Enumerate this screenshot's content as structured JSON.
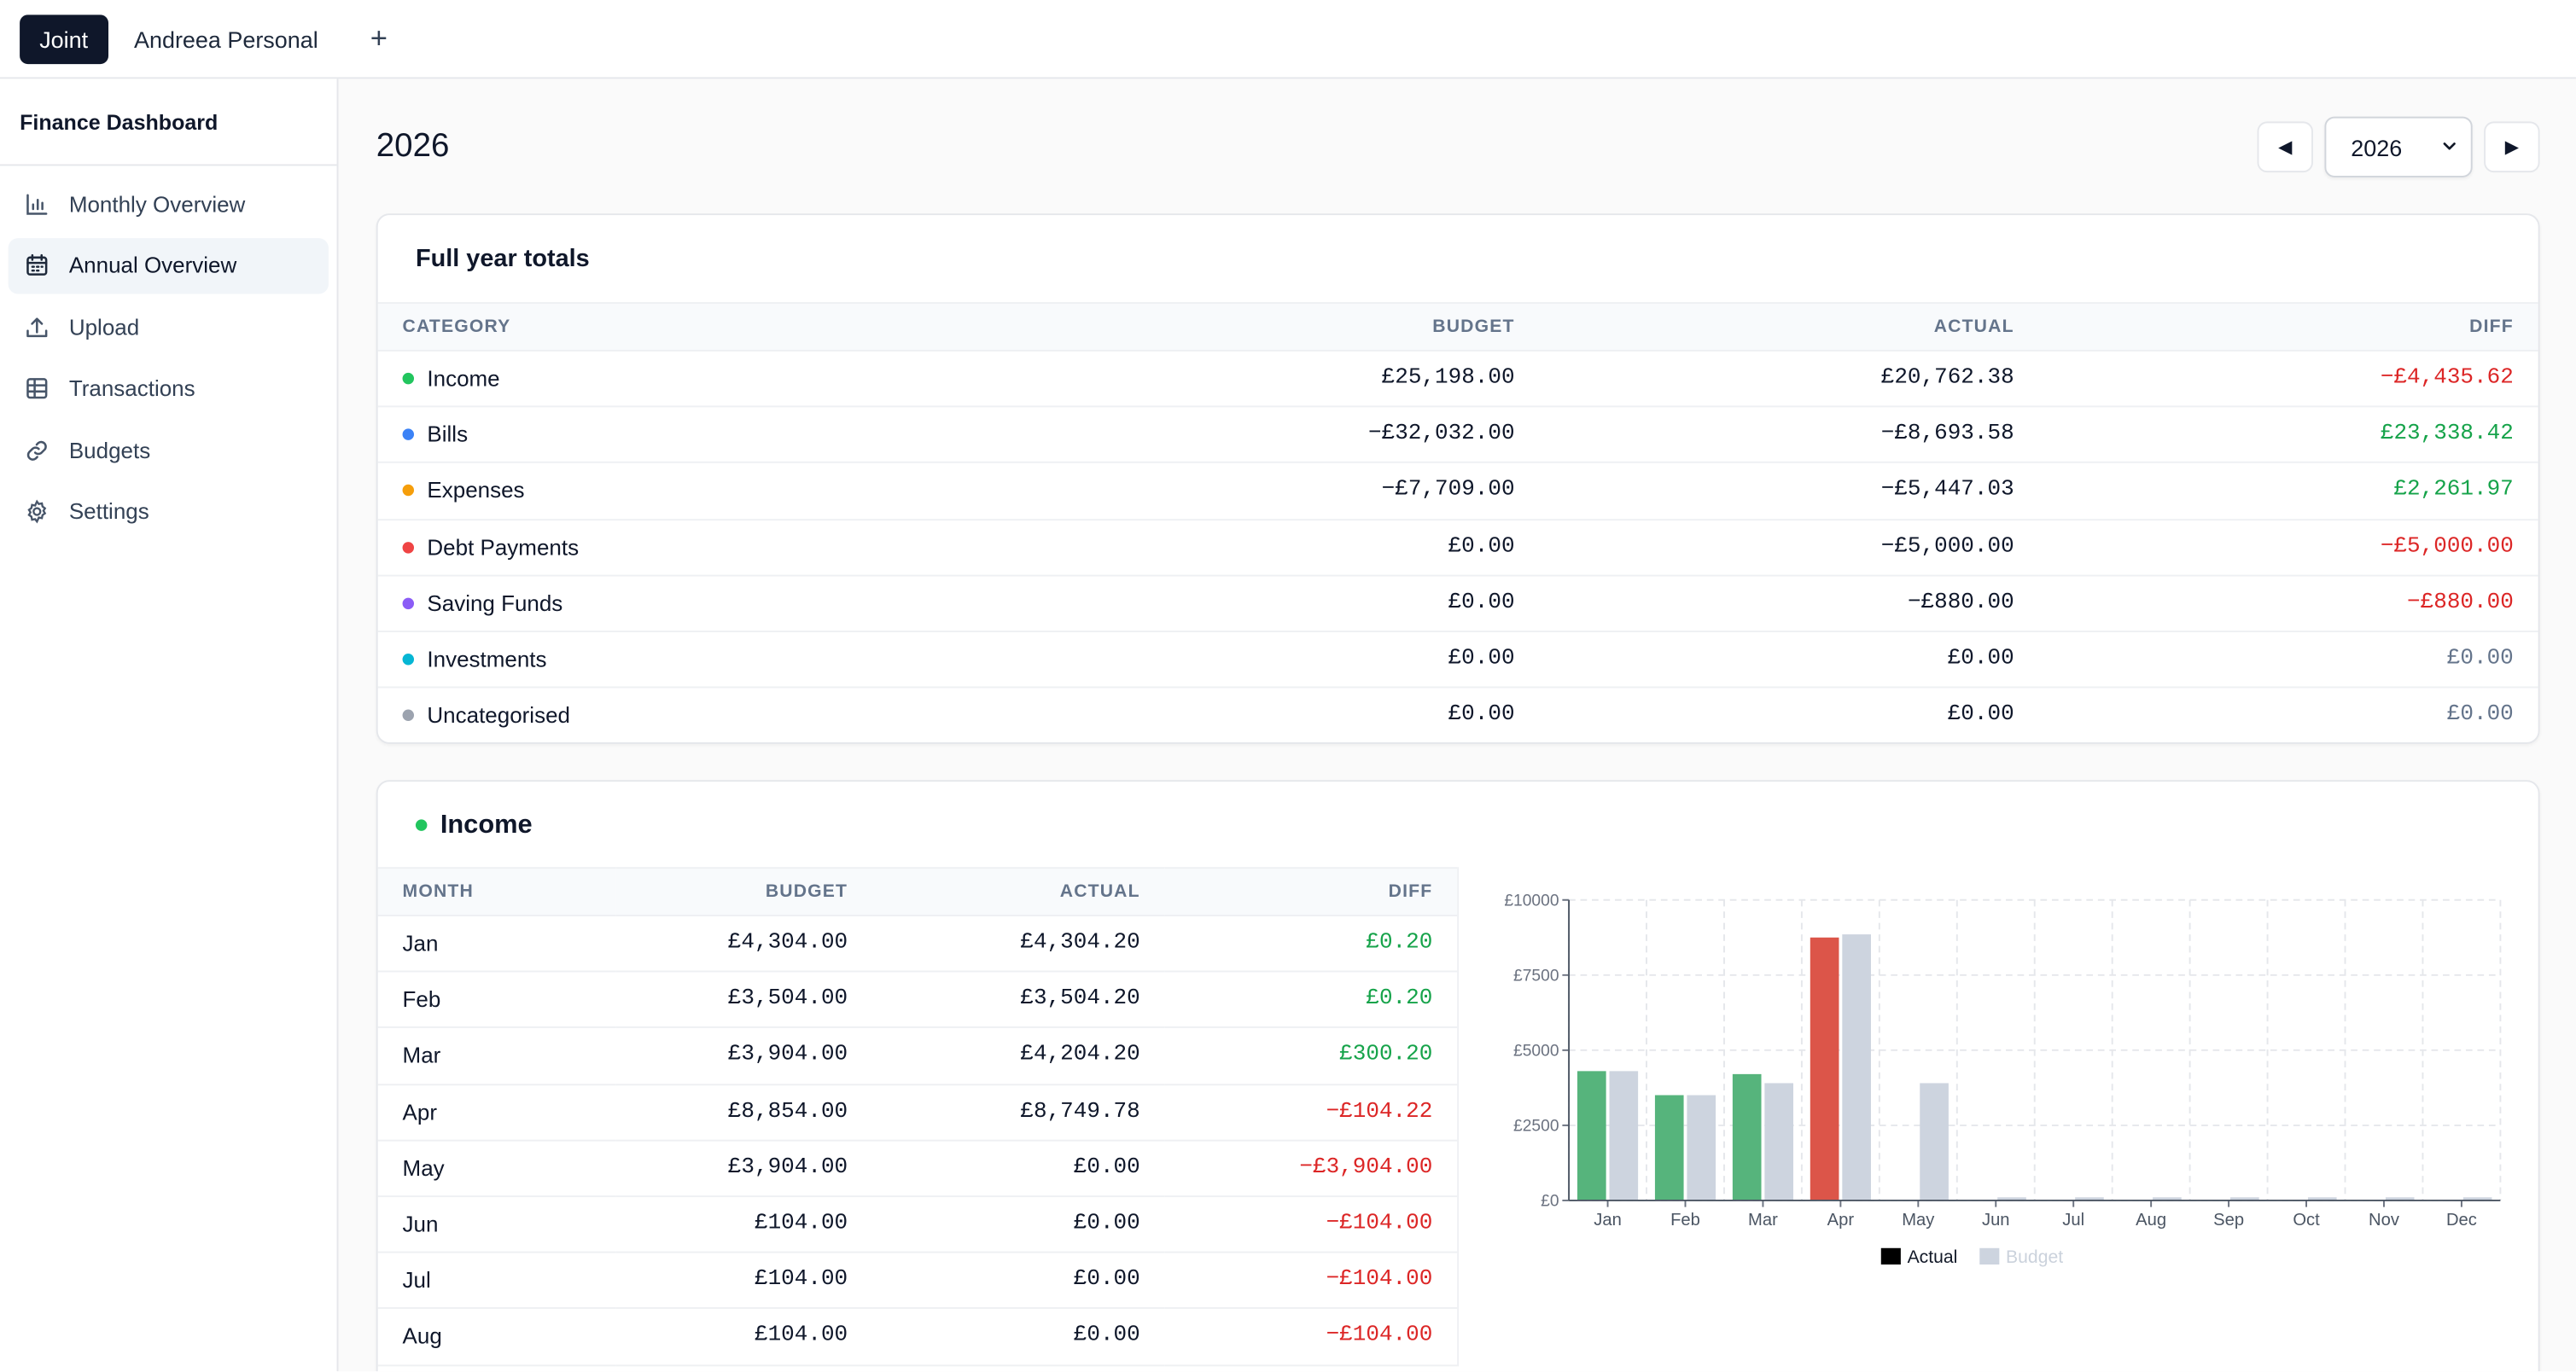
{
  "tabs": [
    {
      "label": "Joint",
      "active": true
    },
    {
      "label": "Andreea Personal",
      "active": false
    }
  ],
  "add_tab_label": "+",
  "sidebar": {
    "title": "Finance Dashboard",
    "items": [
      {
        "label": "Monthly Overview",
        "icon": "bar-chart-icon",
        "active": false
      },
      {
        "label": "Annual Overview",
        "icon": "calendar-icon",
        "active": true
      },
      {
        "label": "Upload",
        "icon": "upload-icon",
        "active": false
      },
      {
        "label": "Transactions",
        "icon": "table-icon",
        "active": false
      },
      {
        "label": "Budgets",
        "icon": "link-icon",
        "active": false
      },
      {
        "label": "Settings",
        "icon": "gear-icon",
        "active": false
      }
    ]
  },
  "page": {
    "title": "2026",
    "year_select": "2026",
    "prev_label": "◀",
    "next_label": "▶"
  },
  "totals": {
    "title": "Full year totals",
    "headers": [
      "CATEGORY",
      "BUDGET",
      "ACTUAL",
      "DIFF"
    ],
    "rows": [
      {
        "category": "Income",
        "color": "#22c55e",
        "budget": "£25,198.00",
        "actual": "£20,762.38",
        "diff": "−£4,435.62",
        "sign": "neg"
      },
      {
        "category": "Bills",
        "color": "#3b82f6",
        "budget": "−£32,032.00",
        "actual": "−£8,693.58",
        "diff": "£23,338.42",
        "sign": "pos"
      },
      {
        "category": "Expenses",
        "color": "#f59e0b",
        "budget": "−£7,709.00",
        "actual": "−£5,447.03",
        "diff": "£2,261.97",
        "sign": "pos"
      },
      {
        "category": "Debt Payments",
        "color": "#ef4444",
        "budget": "£0.00",
        "actual": "−£5,000.00",
        "diff": "−£5,000.00",
        "sign": "neg"
      },
      {
        "category": "Saving Funds",
        "color": "#8b5cf6",
        "budget": "£0.00",
        "actual": "−£880.00",
        "diff": "−£880.00",
        "sign": "neg"
      },
      {
        "category": "Investments",
        "color": "#06b6d4",
        "budget": "£0.00",
        "actual": "£0.00",
        "diff": "£0.00",
        "sign": "zero"
      },
      {
        "category": "Uncategorised",
        "color": "#9ca3af",
        "budget": "£0.00",
        "actual": "£0.00",
        "diff": "£0.00",
        "sign": "zero"
      }
    ]
  },
  "income": {
    "title": "Income",
    "color": "#22c55e",
    "headers": [
      "MONTH",
      "BUDGET",
      "ACTUAL",
      "DIFF"
    ],
    "rows": [
      {
        "month": "Jan",
        "budget": "£4,304.00",
        "actual": "£4,304.20",
        "diff": "£0.20",
        "sign": "pos"
      },
      {
        "month": "Feb",
        "budget": "£3,504.00",
        "actual": "£3,504.20",
        "diff": "£0.20",
        "sign": "pos"
      },
      {
        "month": "Mar",
        "budget": "£3,904.00",
        "actual": "£4,204.20",
        "diff": "£300.20",
        "sign": "pos"
      },
      {
        "month": "Apr",
        "budget": "£8,854.00",
        "actual": "£8,749.78",
        "diff": "−£104.22",
        "sign": "neg"
      },
      {
        "month": "May",
        "budget": "£3,904.00",
        "actual": "£0.00",
        "diff": "−£3,904.00",
        "sign": "neg"
      },
      {
        "month": "Jun",
        "budget": "£104.00",
        "actual": "£0.00",
        "diff": "−£104.00",
        "sign": "neg"
      },
      {
        "month": "Jul",
        "budget": "£104.00",
        "actual": "£0.00",
        "diff": "−£104.00",
        "sign": "neg"
      },
      {
        "month": "Aug",
        "budget": "£104.00",
        "actual": "£0.00",
        "diff": "−£104.00",
        "sign": "neg"
      }
    ]
  },
  "chart_data": {
    "type": "bar",
    "categories": [
      "Jan",
      "Feb",
      "Mar",
      "Apr",
      "May",
      "Jun",
      "Jul",
      "Aug",
      "Sep",
      "Oct",
      "Nov",
      "Dec"
    ],
    "series": [
      {
        "name": "Actual",
        "values": [
          4304.2,
          3504.2,
          4204.2,
          8749.78,
          0,
          0,
          0,
          0,
          0,
          0,
          0,
          0
        ],
        "color": "#56b47c",
        "over_budget_color": "#dc5549"
      },
      {
        "name": "Budget",
        "values": [
          4304,
          3504,
          3904,
          8854,
          3904,
          104,
          104,
          104,
          104,
          104,
          104,
          104
        ],
        "color": "#cdd4df"
      }
    ],
    "ylim": [
      0,
      10000
    ],
    "yticks": [
      "£0",
      "£2500",
      "£5000",
      "£7500",
      "£10000"
    ],
    "ytick_values": [
      0,
      2500,
      5000,
      7500,
      10000
    ],
    "grid": true,
    "legend": "bottom-center",
    "legend_entries": [
      "Actual",
      "Budget"
    ]
  }
}
